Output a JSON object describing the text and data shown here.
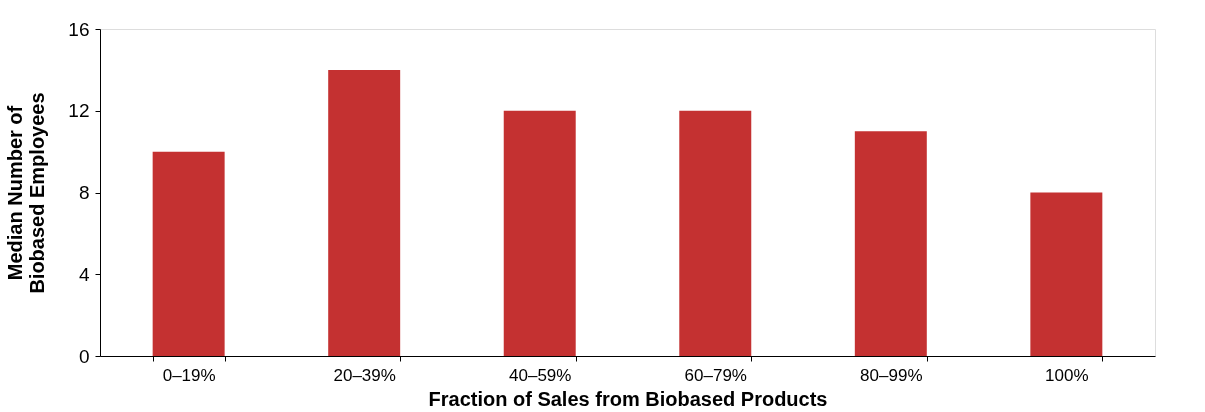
{
  "chart_data": {
    "type": "bar",
    "xlabel": "Fraction of Sales from Biobased Products",
    "ylabel": "Median Number of\nBiobased Employees",
    "categories": [
      "0–19%",
      "20–39%",
      "40–59%",
      "60–79%",
      "80–99%",
      "100%"
    ],
    "values": [
      10,
      14,
      12,
      12,
      11,
      8
    ],
    "color": "#c43131",
    "ylim": [
      0,
      16
    ],
    "yticks": [
      0,
      4,
      8,
      12,
      16
    ],
    "grid": false
  }
}
